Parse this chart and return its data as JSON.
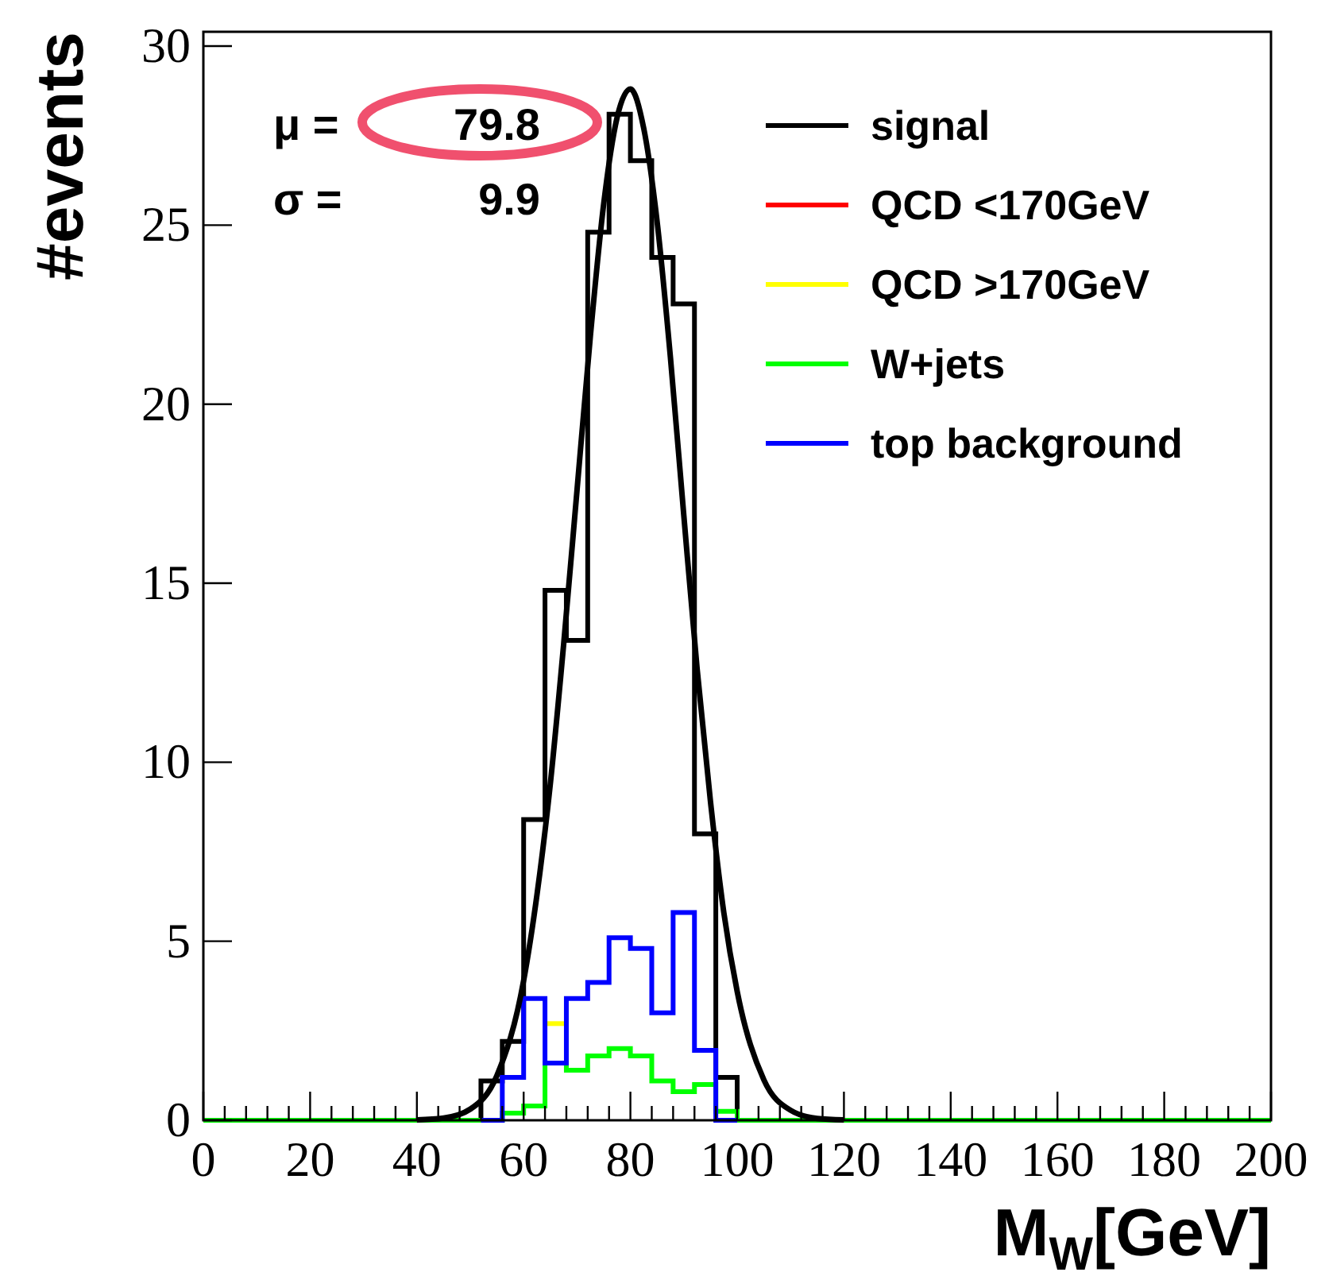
{
  "chart_data": {
    "type": "step",
    "xlabel": "M$_{W}$[GeV]",
    "ylabel": "#events",
    "series": [
      {
        "name": "signal",
        "color": "#000000",
        "x": [
          48,
          52,
          56,
          60,
          64,
          68,
          72,
          76,
          80,
          84,
          88,
          92,
          96,
          100
        ],
        "values": [
          0,
          1.1,
          2.2,
          8.4,
          14.8,
          13.4,
          24.8,
          28.1,
          26.8,
          24.1,
          22.8,
          8.0,
          1.2,
          0
        ]
      },
      {
        "name": "QCD <170GeV",
        "color": "#ff0000"
      },
      {
        "name": "QCD >170GeV",
        "color": "#ffff00",
        "x": [
          64,
          68
        ],
        "values": [
          2.7,
          2.7
        ]
      },
      {
        "name": "W+jets",
        "color": "#00ff00",
        "x": [
          0,
          52,
          56,
          60,
          64,
          68,
          72,
          76,
          80,
          84,
          88,
          92,
          96,
          100,
          200
        ],
        "values": [
          0,
          0,
          0.2,
          0.4,
          1.6,
          1.4,
          1.8,
          2.0,
          1.8,
          1.1,
          0.8,
          1.0,
          0.25,
          0,
          0
        ]
      },
      {
        "name": "top background",
        "color": "#0000ff",
        "x": [
          52,
          56,
          60,
          64,
          68,
          72,
          76,
          80,
          84,
          88,
          92,
          96,
          100
        ],
        "values": [
          0,
          1.2,
          3.4,
          1.6,
          3.4,
          3.85,
          5.1,
          4.8,
          3.0,
          5.8,
          1.95,
          0,
          0
        ]
      },
      {
        "type": "line",
        "color": "#000000",
        "x": [
          40,
          45,
          50,
          55,
          60,
          62.5,
          65,
          67.5,
          70,
          72.5,
          75,
          77.5,
          80,
          82.5,
          85,
          87.5,
          90,
          92.5,
          95,
          97.5,
          100,
          105,
          110,
          115,
          120
        ],
        "values": [
          0.01,
          0.06,
          0.31,
          1.25,
          3.9,
          6.3,
          9.4,
          13.3,
          17.6,
          21.9,
          25.6,
          28.0,
          28.8,
          27.7,
          25.1,
          21.3,
          16.9,
          12.6,
          8.9,
          5.8,
          3.6,
          1.13,
          0.28,
          0.05,
          0.01
        ]
      }
    ],
    "xlim": [
      0,
      200
    ],
    "ylim": [
      0,
      30.4
    ],
    "xticks": [
      0,
      {
        "value": 4,
        "label": null
      },
      {
        "value": 8,
        "label": null
      },
      {
        "value": 12,
        "label": null
      },
      {
        "value": 16,
        "label": null
      },
      20,
      {
        "value": 24,
        "label": null
      },
      {
        "value": 28,
        "label": null
      },
      {
        "value": 32,
        "label": null
      },
      {
        "value": 36,
        "label": null
      },
      40,
      {
        "value": 44,
        "label": null
      },
      {
        "value": 48,
        "label": null
      },
      {
        "value": 52,
        "label": null
      },
      {
        "value": 56,
        "label": null
      },
      60,
      {
        "value": 64,
        "label": null
      },
      {
        "value": 68,
        "label": null
      },
      {
        "value": 72,
        "label": null
      },
      {
        "value": 76,
        "label": null
      },
      80,
      {
        "value": 84,
        "label": null
      },
      {
        "value": 88,
        "label": null
      },
      {
        "value": 92,
        "label": null
      },
      {
        "value": 96,
        "label": null
      },
      100,
      {
        "value": 104,
        "label": null
      },
      {
        "value": 108,
        "label": null
      },
      {
        "value": 112,
        "label": null
      },
      {
        "value": 116,
        "label": null
      },
      120,
      {
        "value": 124,
        "label": null
      },
      {
        "value": 128,
        "label": null
      },
      {
        "value": 132,
        "label": null
      },
      {
        "value": 136,
        "label": null
      },
      140,
      {
        "value": 144,
        "label": null
      },
      {
        "value": 148,
        "label": null
      },
      {
        "value": 152,
        "label": null
      },
      {
        "value": 156,
        "label": null
      },
      160,
      {
        "value": 164,
        "label": null
      },
      {
        "value": 168,
        "label": null
      },
      {
        "value": 172,
        "label": null
      },
      {
        "value": 176,
        "label": null
      },
      180,
      {
        "value": 184,
        "label": null
      },
      {
        "value": 188,
        "label": null
      },
      {
        "value": 192,
        "label": null
      },
      {
        "value": 196,
        "label": null
      },
      200
    ],
    "yticks": [
      0,
      5,
      10,
      15,
      20,
      25,
      30
    ],
    "legend": "top right",
    "annotations": [
      "μ =",
      "79.8",
      "σ =",
      "9.9"
    ]
  }
}
